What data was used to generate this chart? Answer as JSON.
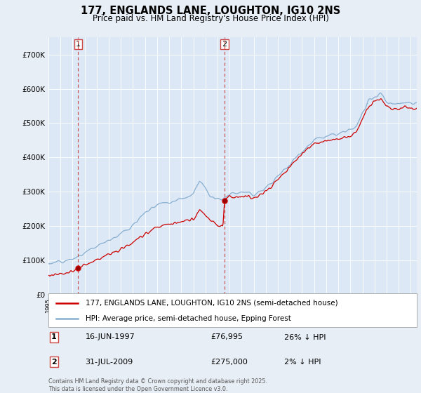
{
  "title": "177, ENGLANDS LANE, LOUGHTON, IG10 2NS",
  "subtitle": "Price paid vs. HM Land Registry's House Price Index (HPI)",
  "background_color": "#e8eef5",
  "plot_bg_color": "#dce8f5",
  "ylim": [
    0,
    750000
  ],
  "yticks": [
    0,
    100000,
    200000,
    300000,
    400000,
    500000,
    600000,
    700000
  ],
  "ytick_labels": [
    "£0",
    "£100K",
    "£200K",
    "£300K",
    "£400K",
    "£500K",
    "£600K",
    "£700K"
  ],
  "legend_entries": [
    "177, ENGLANDS LANE, LOUGHTON, IG10 2NS (semi-detached house)",
    "HPI: Average price, semi-detached house, Epping Forest"
  ],
  "sale1_date": 1997.46,
  "sale1_price": 76995,
  "sale2_date": 2009.58,
  "sale2_price": 275000,
  "footer": "Contains HM Land Registry data © Crown copyright and database right 2025.\nThis data is licensed under the Open Government Licence v3.0.",
  "red_line_color": "#cc0000",
  "blue_line_color": "#88aed0",
  "vline_color": "#cc4444",
  "grid_color": "#ffffff",
  "xmin": 1995,
  "xmax": 2025.5
}
